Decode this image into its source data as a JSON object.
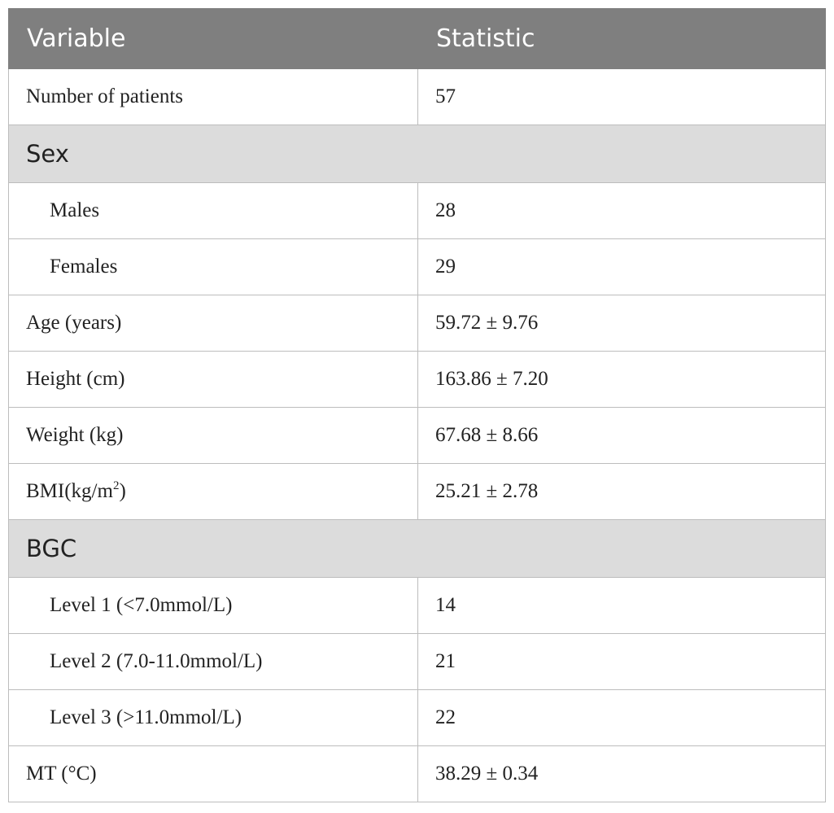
{
  "table": {
    "header": {
      "variable": "Variable",
      "statistic": "Statistic"
    },
    "rows": [
      {
        "kind": "row",
        "variable": "Number of patients",
        "statistic": "57"
      },
      {
        "kind": "section",
        "variable": "Sex"
      },
      {
        "kind": "row",
        "indent": true,
        "variable": "Males",
        "statistic": "28"
      },
      {
        "kind": "row",
        "indent": true,
        "variable": "Females",
        "statistic": "29"
      },
      {
        "kind": "row",
        "variable": "Age (years)",
        "statistic": "59.72 ± 9.76"
      },
      {
        "kind": "row",
        "variable": "Height (cm)",
        "statistic": "163.86 ± 7.20"
      },
      {
        "kind": "row",
        "variable": "Weight (kg)",
        "statistic": "67.68 ± 8.66"
      },
      {
        "kind": "row",
        "variable_prefix": "BMI(kg/m",
        "variable_sup": "2",
        "variable_suffix": ")",
        "statistic": "25.21 ± 2.78"
      },
      {
        "kind": "section",
        "variable": "BGC"
      },
      {
        "kind": "row",
        "indent": true,
        "variable": "Level 1 (<7.0mmol/L)",
        "statistic": "14"
      },
      {
        "kind": "row",
        "indent": true,
        "variable": "Level 2 (7.0-11.0mmol/L)",
        "statistic": "21"
      },
      {
        "kind": "row",
        "indent": true,
        "variable": "Level 3 (>11.0mmol/L)",
        "statistic": "22"
      },
      {
        "kind": "row",
        "variable": "MT (°C)",
        "statistic": "38.29 ± 0.34"
      }
    ]
  }
}
